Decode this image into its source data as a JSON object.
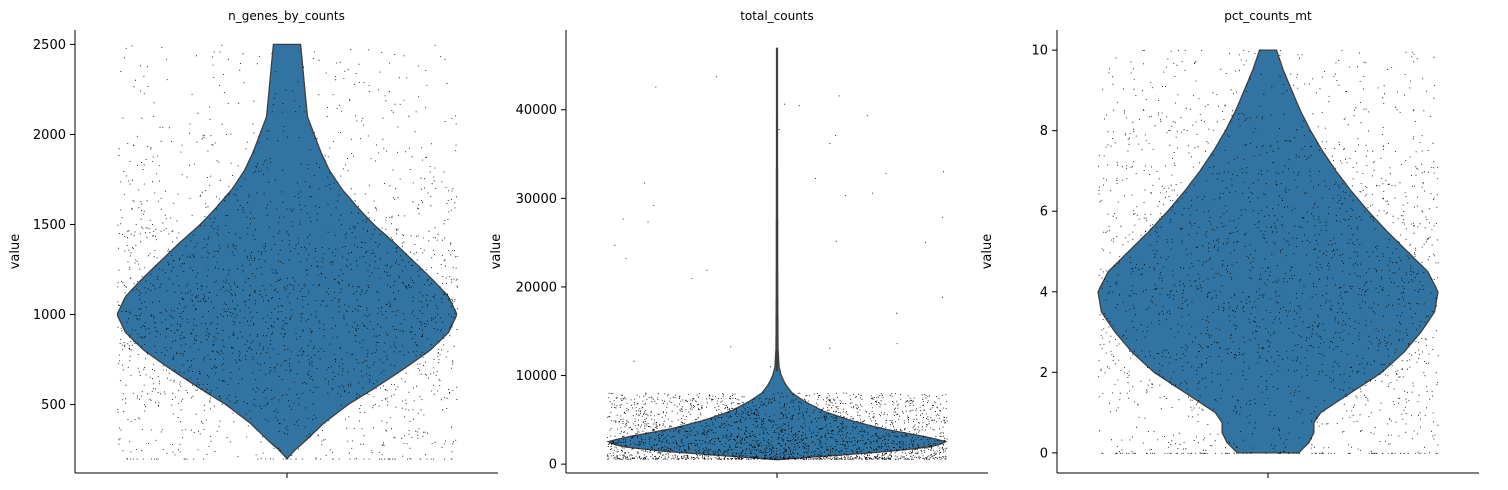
{
  "chart_data": [
    {
      "type": "violin",
      "title": "n_genes_by_counts",
      "ylabel": "value",
      "ylim": [
        120,
        2580
      ],
      "yticks": [
        500,
        1000,
        1500,
        2000,
        2500
      ],
      "ytick_labels": [
        "500",
        "1000",
        "1500",
        "2000",
        "2500"
      ],
      "distribution": {
        "min": 200,
        "max": 2500,
        "median": 1000
      },
      "density_profile": [
        [
          200,
          0.0
        ],
        [
          250,
          0.05
        ],
        [
          300,
          0.11
        ],
        [
          400,
          0.22
        ],
        [
          500,
          0.36
        ],
        [
          600,
          0.53
        ],
        [
          700,
          0.69
        ],
        [
          800,
          0.84
        ],
        [
          900,
          0.95
        ],
        [
          1000,
          1.0
        ],
        [
          1100,
          0.95
        ],
        [
          1200,
          0.85
        ],
        [
          1300,
          0.74
        ],
        [
          1400,
          0.63
        ],
        [
          1500,
          0.51
        ],
        [
          1600,
          0.41
        ],
        [
          1700,
          0.32
        ],
        [
          1800,
          0.25
        ],
        [
          1900,
          0.2
        ],
        [
          2000,
          0.16
        ],
        [
          2100,
          0.12
        ],
        [
          2200,
          0.11
        ],
        [
          2300,
          0.1
        ],
        [
          2400,
          0.09
        ],
        [
          2500,
          0.08
        ]
      ],
      "color": "#3274a1"
    },
    {
      "type": "violin",
      "title": "total_counts",
      "ylabel": "value",
      "ylim": [
        -1000,
        49000
      ],
      "yticks": [
        0,
        10000,
        20000,
        30000,
        40000
      ],
      "ytick_labels": [
        "0",
        "10000",
        "20000",
        "30000",
        "40000"
      ],
      "distribution": {
        "min": 500,
        "max": 47000,
        "median": 2500
      },
      "density_profile": [
        [
          500,
          0.0
        ],
        [
          1000,
          0.35
        ],
        [
          1500,
          0.7
        ],
        [
          2000,
          0.92
        ],
        [
          2500,
          1.0
        ],
        [
          3000,
          0.9
        ],
        [
          4000,
          0.62
        ],
        [
          5000,
          0.42
        ],
        [
          6000,
          0.27
        ],
        [
          7000,
          0.17
        ],
        [
          8000,
          0.09
        ],
        [
          9000,
          0.05
        ],
        [
          10000,
          0.025
        ],
        [
          11000,
          0.012
        ],
        [
          13000,
          0.006
        ],
        [
          20000,
          0.004
        ],
        [
          30000,
          0.003
        ],
        [
          40000,
          0.002
        ],
        [
          47000,
          0.0
        ]
      ],
      "color": "#3274a1"
    },
    {
      "type": "violin",
      "title": "pct_counts_mt",
      "ylabel": "value",
      "ylim": [
        -0.5,
        10.5
      ],
      "yticks": [
        0,
        2,
        4,
        6,
        8,
        10
      ],
      "ytick_labels": [
        "0",
        "2",
        "4",
        "6",
        "8",
        "10"
      ],
      "distribution": {
        "min": 0,
        "max": 10,
        "median": 4
      },
      "density_profile": [
        [
          0.0,
          0.18
        ],
        [
          0.25,
          0.24
        ],
        [
          0.5,
          0.27
        ],
        [
          0.75,
          0.27
        ],
        [
          1.0,
          0.31
        ],
        [
          1.5,
          0.49
        ],
        [
          2.0,
          0.67
        ],
        [
          2.5,
          0.8
        ],
        [
          3.0,
          0.9
        ],
        [
          3.5,
          0.98
        ],
        [
          4.0,
          1.0
        ],
        [
          4.5,
          0.94
        ],
        [
          5.0,
          0.82
        ],
        [
          5.5,
          0.7
        ],
        [
          6.0,
          0.59
        ],
        [
          6.5,
          0.49
        ],
        [
          7.0,
          0.4
        ],
        [
          7.5,
          0.32
        ],
        [
          8.0,
          0.25
        ],
        [
          8.5,
          0.19
        ],
        [
          9.0,
          0.14
        ],
        [
          9.5,
          0.09
        ],
        [
          10.0,
          0.05
        ]
      ],
      "color": "#3274a1"
    }
  ]
}
